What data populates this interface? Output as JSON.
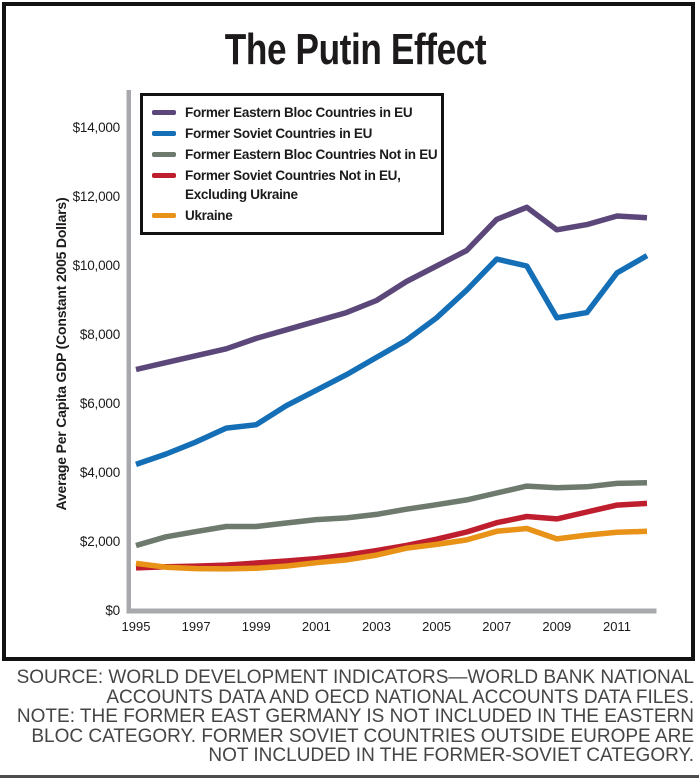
{
  "figure": {
    "title": "The Putin Effect",
    "source_lines": [
      "SOURCE: WORLD DEVELOPMENT INDICATORS—WORLD BANK NATIONAL",
      "ACCOUNTS DATA AND OECD NATIONAL ACCOUNTS DATA FILES."
    ],
    "note_lines": [
      "NOTE: THE FORMER EAST GERMANY IS NOT INCLUDED IN THE EASTERN",
      "BLOC CATEGORY. FORMER SOVIET COUNTRIES OUTSIDE EUROPE ARE",
      "NOT INCLUDED IN THE FORMER-SOVIET CATEGORY."
    ]
  },
  "chart_data": {
    "type": "line",
    "title": "The Putin Effect",
    "xlabel": "",
    "ylabel": "Average Per Capita GDP (Constant 2005 Dollars)",
    "x": [
      1995,
      1996,
      1997,
      1998,
      1999,
      2000,
      2001,
      2002,
      2003,
      2004,
      2005,
      2006,
      2007,
      2008,
      2009,
      2010,
      2011,
      2012
    ],
    "xlim": [
      1995,
      2012
    ],
    "ylim": [
      0,
      15000
    ],
    "grid": false,
    "legend_position": "upper-left inside, boxed",
    "axis_color": "#A7A9AC",
    "x_ticks": [
      {
        "value": 1995,
        "label": "1995"
      },
      {
        "value": 1997,
        "label": "1997"
      },
      {
        "value": 1999,
        "label": "1999"
      },
      {
        "value": 2001,
        "label": "2001"
      },
      {
        "value": 2003,
        "label": "2003"
      },
      {
        "value": 2005,
        "label": "2005"
      },
      {
        "value": 2007,
        "label": "2007"
      },
      {
        "value": 2009,
        "label": "2009"
      },
      {
        "value": 2011,
        "label": "2011"
      }
    ],
    "y_ticks": [
      {
        "value": 0,
        "label": "$0"
      },
      {
        "value": 2000,
        "label": "$2,000"
      },
      {
        "value": 4000,
        "label": "$4,000"
      },
      {
        "value": 6000,
        "label": "$6,000"
      },
      {
        "value": 8000,
        "label": "$8,000"
      },
      {
        "value": 10000,
        "label": "$10,000"
      },
      {
        "value": 12000,
        "label": "$12,000"
      },
      {
        "value": 14000,
        "label": "$14,000"
      }
    ],
    "series": [
      {
        "name": "Former Eastern Bloc Countries in EU",
        "legend_lines": [
          "Former Eastern Bloc Countries in EU"
        ],
        "color": "#5B4779",
        "values": [
          7000,
          7200,
          7400,
          7600,
          7900,
          8150,
          8400,
          8650,
          9000,
          9550,
          10000,
          10450,
          11350,
          11700,
          11050,
          11200,
          11450,
          11400
        ]
      },
      {
        "name": "Former Soviet Countries in EU",
        "legend_lines": [
          "Former Soviet Countries in EU"
        ],
        "color": "#146FB7",
        "values": [
          4250,
          4550,
          4900,
          5300,
          5400,
          5950,
          6400,
          6850,
          7350,
          7850,
          8500,
          9300,
          10200,
          10000,
          8500,
          8650,
          9800,
          10300
        ]
      },
      {
        "name": "Former Eastern Bloc Countries Not in EU",
        "legend_lines": [
          "Former Eastern Bloc Countries Not in EU"
        ],
        "color": "#6E7A6E",
        "values": [
          1900,
          2150,
          2300,
          2450,
          2450,
          2550,
          2650,
          2700,
          2800,
          2950,
          3080,
          3220,
          3420,
          3620,
          3570,
          3600,
          3700,
          3720
        ]
      },
      {
        "name": "Former Soviet Countries Not in EU, Excluding Ukraine",
        "legend_lines": [
          "Former Soviet Countries Not in EU,",
          "Excluding Ukraine"
        ],
        "color": "#BE1E2D",
        "values": [
          1250,
          1280,
          1300,
          1330,
          1390,
          1450,
          1520,
          1620,
          1750,
          1900,
          2080,
          2290,
          2560,
          2740,
          2670,
          2870,
          3070,
          3120
        ]
      },
      {
        "name": "Ukraine",
        "legend_lines": [
          "Ukraine"
        ],
        "color": "#E89218",
        "values": [
          1380,
          1270,
          1230,
          1220,
          1240,
          1300,
          1400,
          1480,
          1620,
          1820,
          1930,
          2060,
          2310,
          2390,
          2090,
          2200,
          2280,
          2310
        ]
      }
    ]
  }
}
